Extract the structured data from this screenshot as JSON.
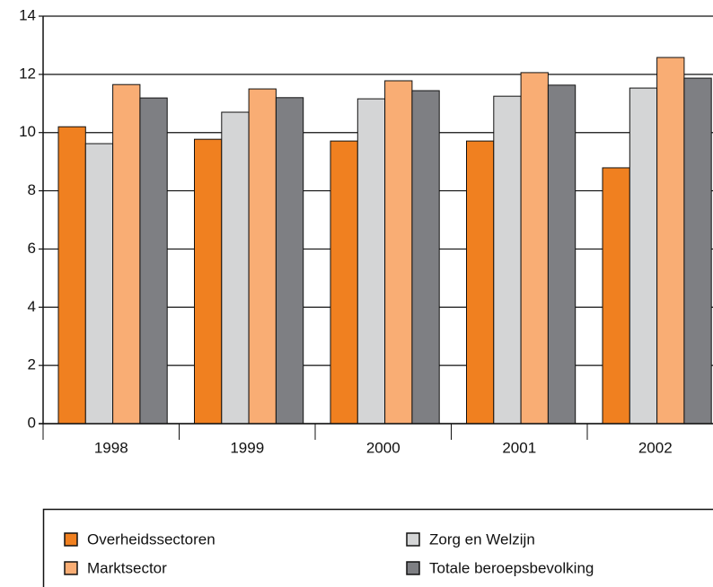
{
  "chart_data": {
    "type": "bar",
    "categories": [
      "1998",
      "1999",
      "2000",
      "2001",
      "2002"
    ],
    "series": [
      {
        "name": "Overheidssectoren",
        "color": "#f08020",
        "values": [
          10.2,
          9.77,
          9.71,
          9.71,
          8.79
        ]
      },
      {
        "name": "Zorg en Welzijn",
        "color": "#d4d5d6",
        "values": [
          9.62,
          10.7,
          11.16,
          11.25,
          11.53
        ]
      },
      {
        "name": "Marktsector",
        "color": "#f9ad74",
        "values": [
          11.65,
          11.5,
          11.78,
          12.06,
          12.58
        ]
      },
      {
        "name": "Totale beroepsbevolking",
        "color": "#7e7f83",
        "values": [
          11.19,
          11.2,
          11.44,
          11.63,
          11.87
        ]
      }
    ],
    "ylim": [
      0,
      14
    ],
    "yticks": [
      0,
      2,
      4,
      6,
      8,
      10,
      12,
      14
    ],
    "grid": true
  }
}
